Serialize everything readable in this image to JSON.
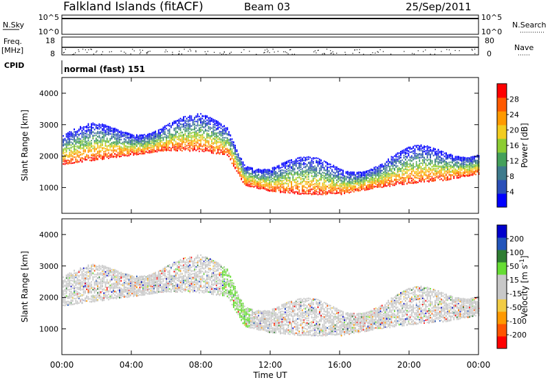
{
  "header": {
    "title": "Falkland Islands (fitACF)",
    "beam": "Beam 03",
    "date": "25/Sep/2011"
  },
  "nsky_panel": {
    "left_label": "N.Sky",
    "right_label": "N.Search",
    "left_ticks": [
      "10^5",
      "10^0"
    ],
    "right_ticks": [
      "10^5",
      "10^0"
    ]
  },
  "freq_panel": {
    "left_label_1": "Freq.",
    "left_label_2": "[MHz]",
    "right_label": "Nave",
    "left_ticks": [
      "18",
      "8"
    ],
    "right_ticks": [
      "80",
      "0"
    ]
  },
  "cpid_panel": {
    "label": "CPID",
    "text": "normal (fast) 151"
  },
  "colors": {
    "power": [
      "#0000ff",
      "#2a4fb8",
      "#3d7a8c",
      "#44a05a",
      "#8ccc33",
      "#f2cc1f",
      "#ff9a00",
      "#ff5a00",
      "#ff0000"
    ],
    "velocity": [
      "#ff0000",
      "#ff5500",
      "#ff9900",
      "#f2cc44",
      "#c8c8c8",
      "#c8c8c8",
      "#66dd33",
      "#2e7d32",
      "#2255bb",
      "#0000cc"
    ]
  },
  "chart_data": [
    {
      "type": "heatmap",
      "quantity": "power",
      "ylabel": "Slant Range [km]",
      "ylim": [
        180,
        4500
      ],
      "yticks": [
        1000,
        2000,
        3000,
        4000
      ],
      "xlim_hours": [
        0,
        24
      ],
      "colorbar": {
        "label": "Power [dB]",
        "ticks": [
          "28",
          "24",
          "20",
          "16",
          "12",
          "8",
          "4"
        ]
      },
      "main_echo_band": {
        "time_hours": [
          0,
          2,
          4,
          6,
          8,
          9.5,
          10.5,
          12,
          14,
          16,
          18,
          20,
          22,
          24
        ],
        "range_km": [
          2000,
          2150,
          2300,
          2450,
          2420,
          2300,
          1350,
          1150,
          1050,
          1050,
          1250,
          1400,
          1500,
          1700
        ]
      }
    },
    {
      "type": "heatmap",
      "quantity": "velocity",
      "ylabel": "Slant Range [km]",
      "ylim": [
        180,
        4500
      ],
      "yticks": [
        1000,
        2000,
        3000,
        4000
      ],
      "xlim_hours": [
        0,
        24
      ],
      "xticks": [
        "00:00",
        "04:00",
        "08:00",
        "12:00",
        "16:00",
        "20:00",
        "00:00"
      ],
      "xlabel": "Time UT",
      "colorbar": {
        "label": "Velocity [m s^-1]",
        "ticks": [
          "200",
          "100",
          "50",
          "15",
          "-15",
          "-50",
          "-100",
          "-200"
        ]
      }
    }
  ]
}
